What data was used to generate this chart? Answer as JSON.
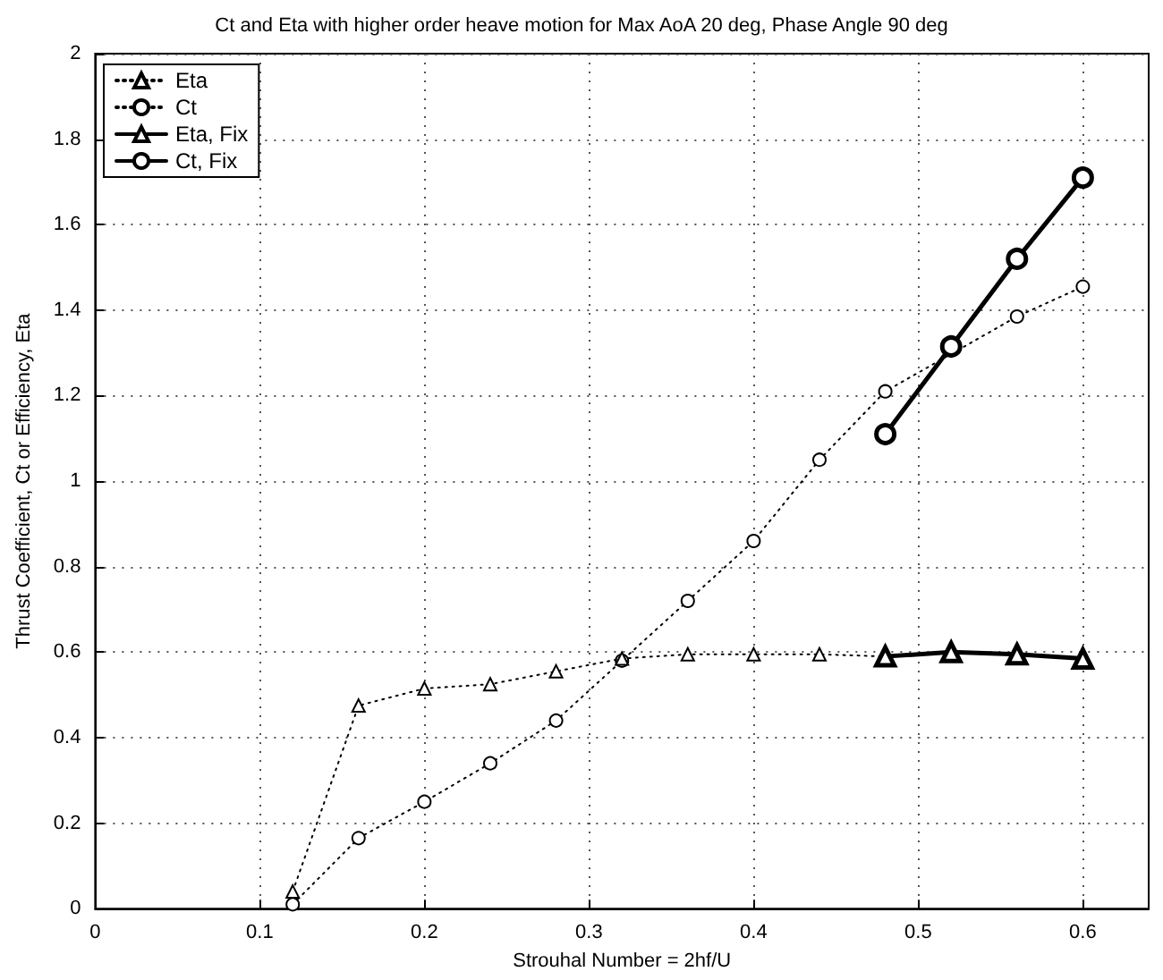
{
  "chart_data": {
    "type": "line",
    "title": "Ct and Eta with higher order heave motion for Max AoA 20 deg, Phase Angle 90 deg",
    "xlabel": "Strouhal Number = 2hf/U",
    "ylabel": "Thrust Coefficient, Ct or Efficiency, Eta",
    "xlim": [
      0,
      0.64
    ],
    "xticks": [
      0,
      0.1,
      0.2,
      0.3,
      0.4,
      0.5,
      0.6
    ],
    "ylim": [
      0,
      2
    ],
    "yticks": [
      0,
      0.2,
      0.4,
      0.6,
      0.8,
      1,
      1.2,
      1.4,
      1.6,
      1.8,
      2
    ],
    "grid": true,
    "legend": "top left",
    "series": [
      {
        "name": "Eta",
        "color": "#000000",
        "marker": "triangle",
        "line_style": "dotted",
        "x": [
          0.12,
          0.16,
          0.2,
          0.24,
          0.28,
          0.32,
          0.36,
          0.4,
          0.44,
          0.48
        ],
        "values": [
          0.04,
          0.475,
          0.515,
          0.525,
          0.555,
          0.585,
          0.595,
          0.595,
          0.595,
          0.59
        ]
      },
      {
        "name": "Ct",
        "color": "#000000",
        "marker": "circle",
        "line_style": "dotted",
        "x": [
          0.12,
          0.16,
          0.2,
          0.24,
          0.28,
          0.32,
          0.36,
          0.4,
          0.44,
          0.48,
          0.56,
          0.6
        ],
        "values": [
          0.01,
          0.165,
          0.25,
          0.34,
          0.44,
          0.58,
          0.72,
          0.86,
          1.05,
          1.21,
          1.385,
          1.455
        ]
      },
      {
        "name": "Eta, Fix",
        "color": "#000000",
        "marker": "triangle",
        "line_style": "solid",
        "x": [
          0.48,
          0.52,
          0.56,
          0.6
        ],
        "values": [
          0.59,
          0.6,
          0.595,
          0.585
        ]
      },
      {
        "name": "Ct, Fix",
        "color": "#000000",
        "marker": "circle",
        "line_style": "solid",
        "x": [
          0.48,
          0.52,
          0.56,
          0.6
        ],
        "values": [
          1.11,
          1.315,
          1.52,
          1.71
        ]
      }
    ]
  }
}
